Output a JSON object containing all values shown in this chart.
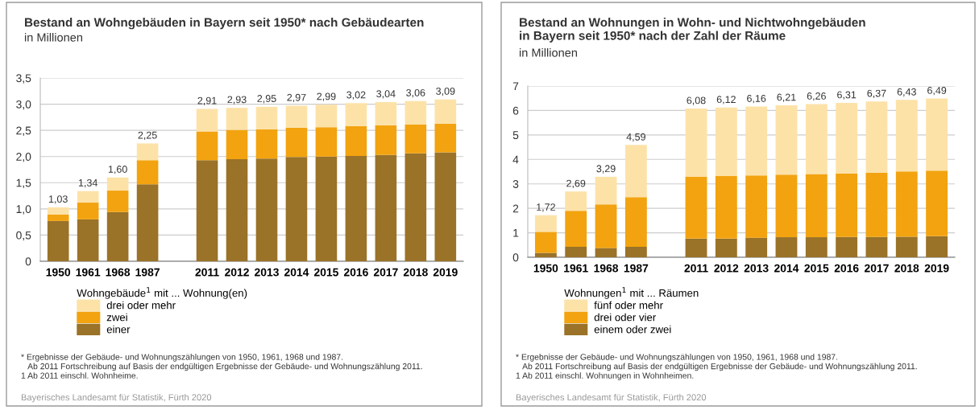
{
  "chart_data": [
    {
      "type": "bar",
      "stacked": true,
      "title": "Bestand an Wohngebäuden in Bayern seit 1950* nach Gebäudearten",
      "subtitle": "in Millionen",
      "categories": [
        "1950",
        "1961",
        "1968",
        "1987",
        null,
        "2011",
        "2012",
        "2013",
        "2014",
        "2015",
        "2016",
        "2017",
        "2018",
        "2019"
      ],
      "series": [
        {
          "name": "einer",
          "color": "#9a7228",
          "values": [
            0.77,
            0.8,
            0.94,
            1.47,
            null,
            1.93,
            1.95,
            1.96,
            1.99,
            2.0,
            2.01,
            2.03,
            2.06,
            2.08
          ]
        },
        {
          "name": "zwei",
          "color": "#f2a30f",
          "values": [
            0.12,
            0.32,
            0.41,
            0.46,
            null,
            0.55,
            0.56,
            0.56,
            0.56,
            0.56,
            0.57,
            0.57,
            0.55,
            0.55
          ]
        },
        {
          "name": "drei oder mehr",
          "color": "#fde2a8",
          "values": [
            0.14,
            0.22,
            0.25,
            0.32,
            null,
            0.43,
            0.42,
            0.43,
            0.42,
            0.43,
            0.44,
            0.44,
            0.45,
            0.46
          ]
        }
      ],
      "totals": [
        "1,03",
        "1,34",
        "1,60",
        "2,25",
        null,
        "2,91",
        "2,93",
        "2,95",
        "2,97",
        "2,99",
        "3,02",
        "3,04",
        "3,06",
        "3,09"
      ],
      "ylim": [
        0,
        3.5
      ],
      "yticks": [
        0,
        {
          "value": 0.5,
          "label": "0,5"
        },
        {
          "value": 1.0,
          "label": "1,0"
        },
        {
          "value": 1.5,
          "label": "1,5"
        },
        {
          "value": 2.0,
          "label": "2,0"
        },
        {
          "value": 2.5,
          "label": "2,5"
        },
        {
          "value": 3.0,
          "label": "3,0"
        },
        {
          "value": 3.5,
          "label": "3,5"
        }
      ],
      "grid": "y",
      "legend": "bottom",
      "legend_title": "Wohngebäude$^{1}$ mit ... Wohnung(en)",
      "annotations": [
        "* Ergebnisse der Gebäude- und Wohnungszählungen von 1950, 1961, 1968 und 1987.\n   Ab 2011 Fortschreibung auf Basis der endgültigen Ergebnisse der Gebäude- und Wohnungszählung 2011.\n1 Ab 2011 einschl. Wohnheime.",
        "Bayerisches Landesamt für Statistik, Fürth 2020"
      ]
    },
    {
      "type": "bar",
      "stacked": true,
      "title": "Bestand an Wohnungen in Wohn- und Nichtwohngebäuden\nin Bayern seit 1950* nach der Zahl der Räume",
      "subtitle": "in Millionen",
      "categories": [
        "1950",
        "1961",
        "1968",
        "1987",
        null,
        "2011",
        "2012",
        "2013",
        "2014",
        "2015",
        "2016",
        "2017",
        "2018",
        "2019"
      ],
      "series": [
        {
          "name": "einem oder zwei",
          "color": "#9a7228",
          "values": [
            0.18,
            0.43,
            0.38,
            0.43,
            null,
            0.76,
            0.76,
            0.8,
            0.82,
            0.82,
            0.83,
            0.83,
            0.84,
            0.86
          ]
        },
        {
          "name": "drei oder vier",
          "color": "#f2a30f",
          "values": [
            0.86,
            1.47,
            1.78,
            2.03,
            null,
            2.53,
            2.56,
            2.54,
            2.56,
            2.58,
            2.59,
            2.63,
            2.67,
            2.68
          ]
        },
        {
          "name": "fünf oder mehr",
          "color": "#fde2a8",
          "values": [
            0.68,
            0.79,
            1.13,
            2.13,
            null,
            2.79,
            2.8,
            2.82,
            2.83,
            2.86,
            2.89,
            2.91,
            2.92,
            2.95
          ]
        }
      ],
      "totals": [
        "1,72",
        "2,69",
        "3,29",
        "4,59",
        null,
        "6,08",
        "6,12",
        "6,16",
        "6,21",
        "6,26",
        "6,31",
        "6,37",
        "6,43",
        "6,49"
      ],
      "ylim": [
        0,
        7
      ],
      "yticks": [
        0,
        1,
        2,
        3,
        4,
        5,
        6,
        7
      ],
      "grid": "y",
      "legend": "bottom",
      "legend_title": "Wohnungen$^{1}$ mit ... Räumen",
      "annotations": [
        "* Ergebnisse der Gebäude- und Wohnungszählungen von 1950, 1961, 1968 und 1987.\n   Ab 2011 Fortschreibung auf Basis der endgültigen Ergebnisse der Gebäude- und Wohnungszählung 2011.\n1 Ab 2011 einschl. Wohnungen in Wohnheimen.",
        "Bayerisches Landesamt für Statistik, Fürth 2020"
      ]
    }
  ]
}
